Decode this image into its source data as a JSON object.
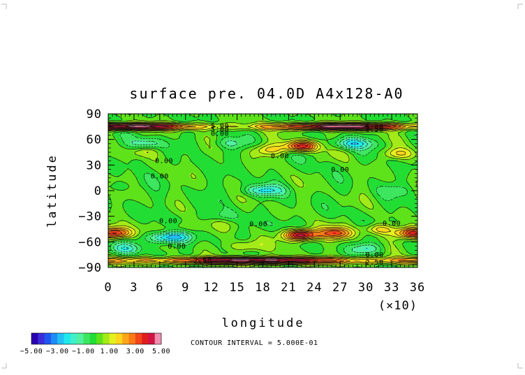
{
  "chart_data": {
    "type": "heatmap",
    "title": "surface pre. 04.0D A4x128-A0",
    "xlabel": "longitude",
    "ylabel": "latitude",
    "x_multiplier": "(×10)",
    "xlim": [
      0,
      36
    ],
    "ylim": [
      -90,
      90
    ],
    "x_ticks": [
      "0",
      "3",
      "6",
      "9",
      "12",
      "15",
      "18",
      "21",
      "24",
      "27",
      "30",
      "33",
      "36"
    ],
    "y_ticks": [
      "90",
      "60",
      "30",
      "0",
      "−30",
      "−60",
      "−90"
    ],
    "x_tick_values": [
      0,
      3,
      6,
      9,
      12,
      15,
      18,
      21,
      24,
      27,
      30,
      33,
      36
    ],
    "y_tick_values": [
      90,
      60,
      30,
      0,
      -30,
      -60,
      -90
    ],
    "contour_interval": "CONTOUR INTERVAL = 5.000E-01",
    "colorbar": {
      "labels": [
        "−5.00",
        "−3.00",
        "−1.00",
        "1.00",
        "3.00",
        "5.00"
      ],
      "colors": [
        "#2a00b0",
        "#3c2cd8",
        "#1f55f0",
        "#1e8cf5",
        "#22bff5",
        "#1fe8ee",
        "#3ff0c8",
        "#52f0a0",
        "#3ee660",
        "#22dd33",
        "#5ee21a",
        "#a3ea18",
        "#e4f020",
        "#fcd51c",
        "#fca51a",
        "#fa7a18",
        "#f2461a",
        "#e01e1e",
        "#d01446",
        "#ee8fb2"
      ],
      "range": [
        -5,
        5
      ]
    },
    "contour_labels": [
      {
        "text": "5.00",
        "lon": 13.0,
        "lat": 76
      },
      {
        "text": "5.00",
        "lon": 13.0,
        "lat": 72
      },
      {
        "text": "0.00",
        "lon": 13.0,
        "lat": 67
      },
      {
        "text": "5.00",
        "lon": 31.0,
        "lat": 75
      },
      {
        "text": "2.50",
        "lon": 31.0,
        "lat": 72
      },
      {
        "text": "0.00",
        "lon": 6.5,
        "lat": 35
      },
      {
        "text": "0.00",
        "lon": 20.0,
        "lat": 41
      },
      {
        "text": "0.00",
        "lon": 27.0,
        "lat": 25
      },
      {
        "text": "0.00",
        "lon": 6.0,
        "lat": 17
      },
      {
        "text": "0.00",
        "lon": 7.0,
        "lat": -35
      },
      {
        "text": "0.00",
        "lon": 17.5,
        "lat": -39
      },
      {
        "text": "0.00",
        "lon": 33.0,
        "lat": -38
      },
      {
        "text": "0.00",
        "lon": 8.0,
        "lat": -65
      },
      {
        "text": "0.00",
        "lon": 31.0,
        "lat": -75
      },
      {
        "text": "2.50",
        "lon": 11.0,
        "lat": -82
      },
      {
        "text": "2.50",
        "lon": 31.0,
        "lat": -84
      }
    ],
    "features": [
      {
        "kind": "polar_ridge",
        "lat": 75,
        "width": 4,
        "value": 5
      },
      {
        "kind": "polar_ridge",
        "lat": -82,
        "width": 4,
        "value": 5
      },
      {
        "kind": "max",
        "lon": 22.5,
        "lat": 52,
        "value": 4
      },
      {
        "kind": "max",
        "lon": 18.5,
        "lat": 48,
        "value": 1.5
      },
      {
        "kind": "max",
        "lon": 33.5,
        "lat": 43,
        "value": 1.5
      },
      {
        "kind": "max",
        "lon": 4.0,
        "lat": 45,
        "value": 1
      },
      {
        "kind": "max",
        "lon": 22.5,
        "lat": -52,
        "value": 5
      },
      {
        "kind": "max",
        "lon": 26.5,
        "lat": -50,
        "value": 3
      },
      {
        "kind": "max",
        "lon": 0.8,
        "lat": -50,
        "value": 4
      },
      {
        "kind": "max",
        "lon": 35.5,
        "lat": -50,
        "value": 4
      },
      {
        "kind": "max",
        "lon": 31.5,
        "lat": -45,
        "value": 2
      },
      {
        "kind": "max",
        "lon": 8.5,
        "lat": -42,
        "value": 1
      },
      {
        "kind": "max",
        "lon": 16.0,
        "lat": -65,
        "value": 1.5
      },
      {
        "kind": "min",
        "lon": 18.0,
        "lat": 0,
        "value": -2
      },
      {
        "kind": "min",
        "lon": 7.0,
        "lat": -55,
        "value": -3
      },
      {
        "kind": "min",
        "lon": 4.5,
        "lat": 55,
        "value": -1.5
      },
      {
        "kind": "min",
        "lon": 28.5,
        "lat": 55,
        "value": -2
      },
      {
        "kind": "min",
        "lon": 14.0,
        "lat": 55,
        "value": -1
      },
      {
        "kind": "min",
        "lon": 2.0,
        "lat": -68,
        "value": -1.5
      },
      {
        "kind": "min",
        "lon": 30.0,
        "lat": -68,
        "value": -1.5
      },
      {
        "kind": "min",
        "lon": 13.0,
        "lat": -30,
        "value": -0.8
      },
      {
        "kind": "min",
        "lon": 33.5,
        "lat": 0,
        "value": -0.6
      },
      {
        "kind": "min",
        "lon": 1.5,
        "lat": 5,
        "value": -0.6
      }
    ]
  }
}
